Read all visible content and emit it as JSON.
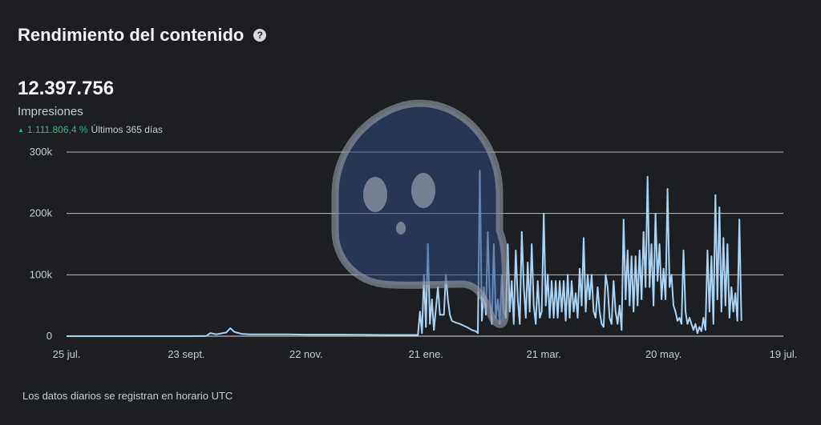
{
  "header": {
    "title": "Rendimiento del contenido",
    "help_icon": "?"
  },
  "metric": {
    "value": "12.397.756",
    "label": "Impresiones",
    "change_icon": "triangle-up-icon",
    "change_value": "1.111.806,4 %",
    "change_period": "Últimos 365 días"
  },
  "footer": {
    "note": "Los datos diarios se registran en horario UTC"
  },
  "colors": {
    "background": "#1c1e22",
    "line": "#a9d4f5",
    "grid": "#ffffff",
    "positive": "#2fb97a"
  },
  "chart_data": {
    "type": "line",
    "x_tick_labels": [
      "25 jul.",
      "23 sept.",
      "22 nov.",
      "21 ene.",
      "21 mar.",
      "20 may.",
      "19 jul."
    ],
    "y_tick_labels": [
      "0",
      "100k",
      "200k",
      "300k"
    ],
    "ylim": [
      0,
      300000
    ],
    "grid": true,
    "x_unit": "days since 25 jul.",
    "series": [
      {
        "name": "Impresiones",
        "points": [
          [
            0,
            0
          ],
          [
            20,
            0
          ],
          [
            40,
            0
          ],
          [
            60,
            0
          ],
          [
            70,
            300
          ],
          [
            72,
            5000
          ],
          [
            75,
            3000
          ],
          [
            80,
            6000
          ],
          [
            82,
            13000
          ],
          [
            84,
            7000
          ],
          [
            88,
            3500
          ],
          [
            92,
            3000
          ],
          [
            100,
            3000
          ],
          [
            110,
            3000
          ],
          [
            120,
            2500
          ],
          [
            140,
            2500
          ],
          [
            160,
            2000
          ],
          [
            176,
            2000
          ],
          [
            177,
            40000
          ],
          [
            178,
            5000
          ],
          [
            179,
            100000
          ],
          [
            180,
            15000
          ],
          [
            181,
            150000
          ],
          [
            182,
            20000
          ],
          [
            183,
            60000
          ],
          [
            184,
            10000
          ],
          [
            185,
            45000
          ],
          [
            186,
            80000
          ],
          [
            187,
            35000
          ],
          [
            189,
            35000
          ],
          [
            190,
            100000
          ],
          [
            191,
            60000
          ],
          [
            192,
            35000
          ],
          [
            193,
            25000
          ],
          [
            195,
            22000
          ],
          [
            197,
            20000
          ],
          [
            199,
            17000
          ],
          [
            201,
            14000
          ],
          [
            203,
            10000
          ],
          [
            205,
            8000
          ],
          [
            206,
            5000
          ],
          [
            207,
            270000
          ],
          [
            208,
            25000
          ],
          [
            209,
            80000
          ],
          [
            210,
            35000
          ],
          [
            211,
            170000
          ],
          [
            212,
            60000
          ],
          [
            213,
            20000
          ],
          [
            214,
            150000
          ],
          [
            215,
            30000
          ],
          [
            216,
            60000
          ],
          [
            217,
            20000
          ],
          [
            218,
            100000
          ],
          [
            219,
            40000
          ],
          [
            220,
            30000
          ],
          [
            221,
            150000
          ],
          [
            222,
            40000
          ],
          [
            223,
            90000
          ],
          [
            224,
            20000
          ],
          [
            225,
            140000
          ],
          [
            226,
            60000
          ],
          [
            227,
            20000
          ],
          [
            228,
            170000
          ],
          [
            229,
            80000
          ],
          [
            230,
            30000
          ],
          [
            231,
            120000
          ],
          [
            232,
            40000
          ],
          [
            233,
            150000
          ],
          [
            234,
            50000
          ],
          [
            235,
            20000
          ],
          [
            236,
            90000
          ],
          [
            237,
            30000
          ],
          [
            238,
            40000
          ],
          [
            239,
            200000
          ],
          [
            240,
            50000
          ],
          [
            241,
            100000
          ],
          [
            242,
            30000
          ],
          [
            243,
            90000
          ],
          [
            244,
            30000
          ],
          [
            245,
            90000
          ],
          [
            246,
            30000
          ],
          [
            247,
            90000
          ],
          [
            248,
            40000
          ],
          [
            249,
            90000
          ],
          [
            250,
            25000
          ],
          [
            251,
            100000
          ],
          [
            252,
            30000
          ],
          [
            253,
            90000
          ],
          [
            254,
            40000
          ],
          [
            255,
            70000
          ],
          [
            256,
            30000
          ],
          [
            257,
            110000
          ],
          [
            258,
            50000
          ],
          [
            259,
            160000
          ],
          [
            260,
            40000
          ],
          [
            261,
            100000
          ],
          [
            262,
            60000
          ],
          [
            263,
            100000
          ],
          [
            264,
            40000
          ],
          [
            265,
            30000
          ],
          [
            266,
            80000
          ],
          [
            267,
            40000
          ],
          [
            268,
            20000
          ],
          [
            269,
            15000
          ],
          [
            270,
            100000
          ],
          [
            271,
            80000
          ],
          [
            272,
            30000
          ],
          [
            273,
            20000
          ],
          [
            274,
            90000
          ],
          [
            275,
            40000
          ],
          [
            276,
            20000
          ],
          [
            277,
            50000
          ],
          [
            278,
            10000
          ],
          [
            279,
            190000
          ],
          [
            280,
            60000
          ],
          [
            281,
            140000
          ],
          [
            282,
            50000
          ],
          [
            283,
            130000
          ],
          [
            284,
            40000
          ],
          [
            285,
            130000
          ],
          [
            286,
            50000
          ],
          [
            287,
            140000
          ],
          [
            288,
            60000
          ],
          [
            289,
            170000
          ],
          [
            290,
            80000
          ],
          [
            291,
            260000
          ],
          [
            292,
            80000
          ],
          [
            293,
            150000
          ],
          [
            294,
            50000
          ],
          [
            295,
            200000
          ],
          [
            296,
            90000
          ],
          [
            297,
            150000
          ],
          [
            298,
            60000
          ],
          [
            299,
            110000
          ],
          [
            300,
            60000
          ],
          [
            301,
            240000
          ],
          [
            302,
            80000
          ],
          [
            303,
            100000
          ],
          [
            304,
            50000
          ],
          [
            305,
            40000
          ],
          [
            306,
            25000
          ],
          [
            307,
            30000
          ],
          [
            308,
            20000
          ],
          [
            309,
            140000
          ],
          [
            310,
            40000
          ],
          [
            311,
            20000
          ],
          [
            312,
            30000
          ],
          [
            313,
            20000
          ],
          [
            314,
            10000
          ],
          [
            315,
            20000
          ],
          [
            316,
            5000
          ],
          [
            317,
            15000
          ],
          [
            318,
            8000
          ],
          [
            319,
            30000
          ],
          [
            320,
            10000
          ],
          [
            321,
            140000
          ],
          [
            322,
            40000
          ],
          [
            323,
            130000
          ],
          [
            324,
            20000
          ],
          [
            325,
            230000
          ],
          [
            326,
            60000
          ],
          [
            327,
            210000
          ],
          [
            328,
            40000
          ],
          [
            329,
            160000
          ],
          [
            330,
            50000
          ],
          [
            331,
            150000
          ],
          [
            332,
            30000
          ],
          [
            333,
            80000
          ],
          [
            334,
            40000
          ],
          [
            335,
            70000
          ],
          [
            336,
            25000
          ],
          [
            337,
            190000
          ],
          [
            338,
            25000
          ]
        ]
      }
    ]
  }
}
